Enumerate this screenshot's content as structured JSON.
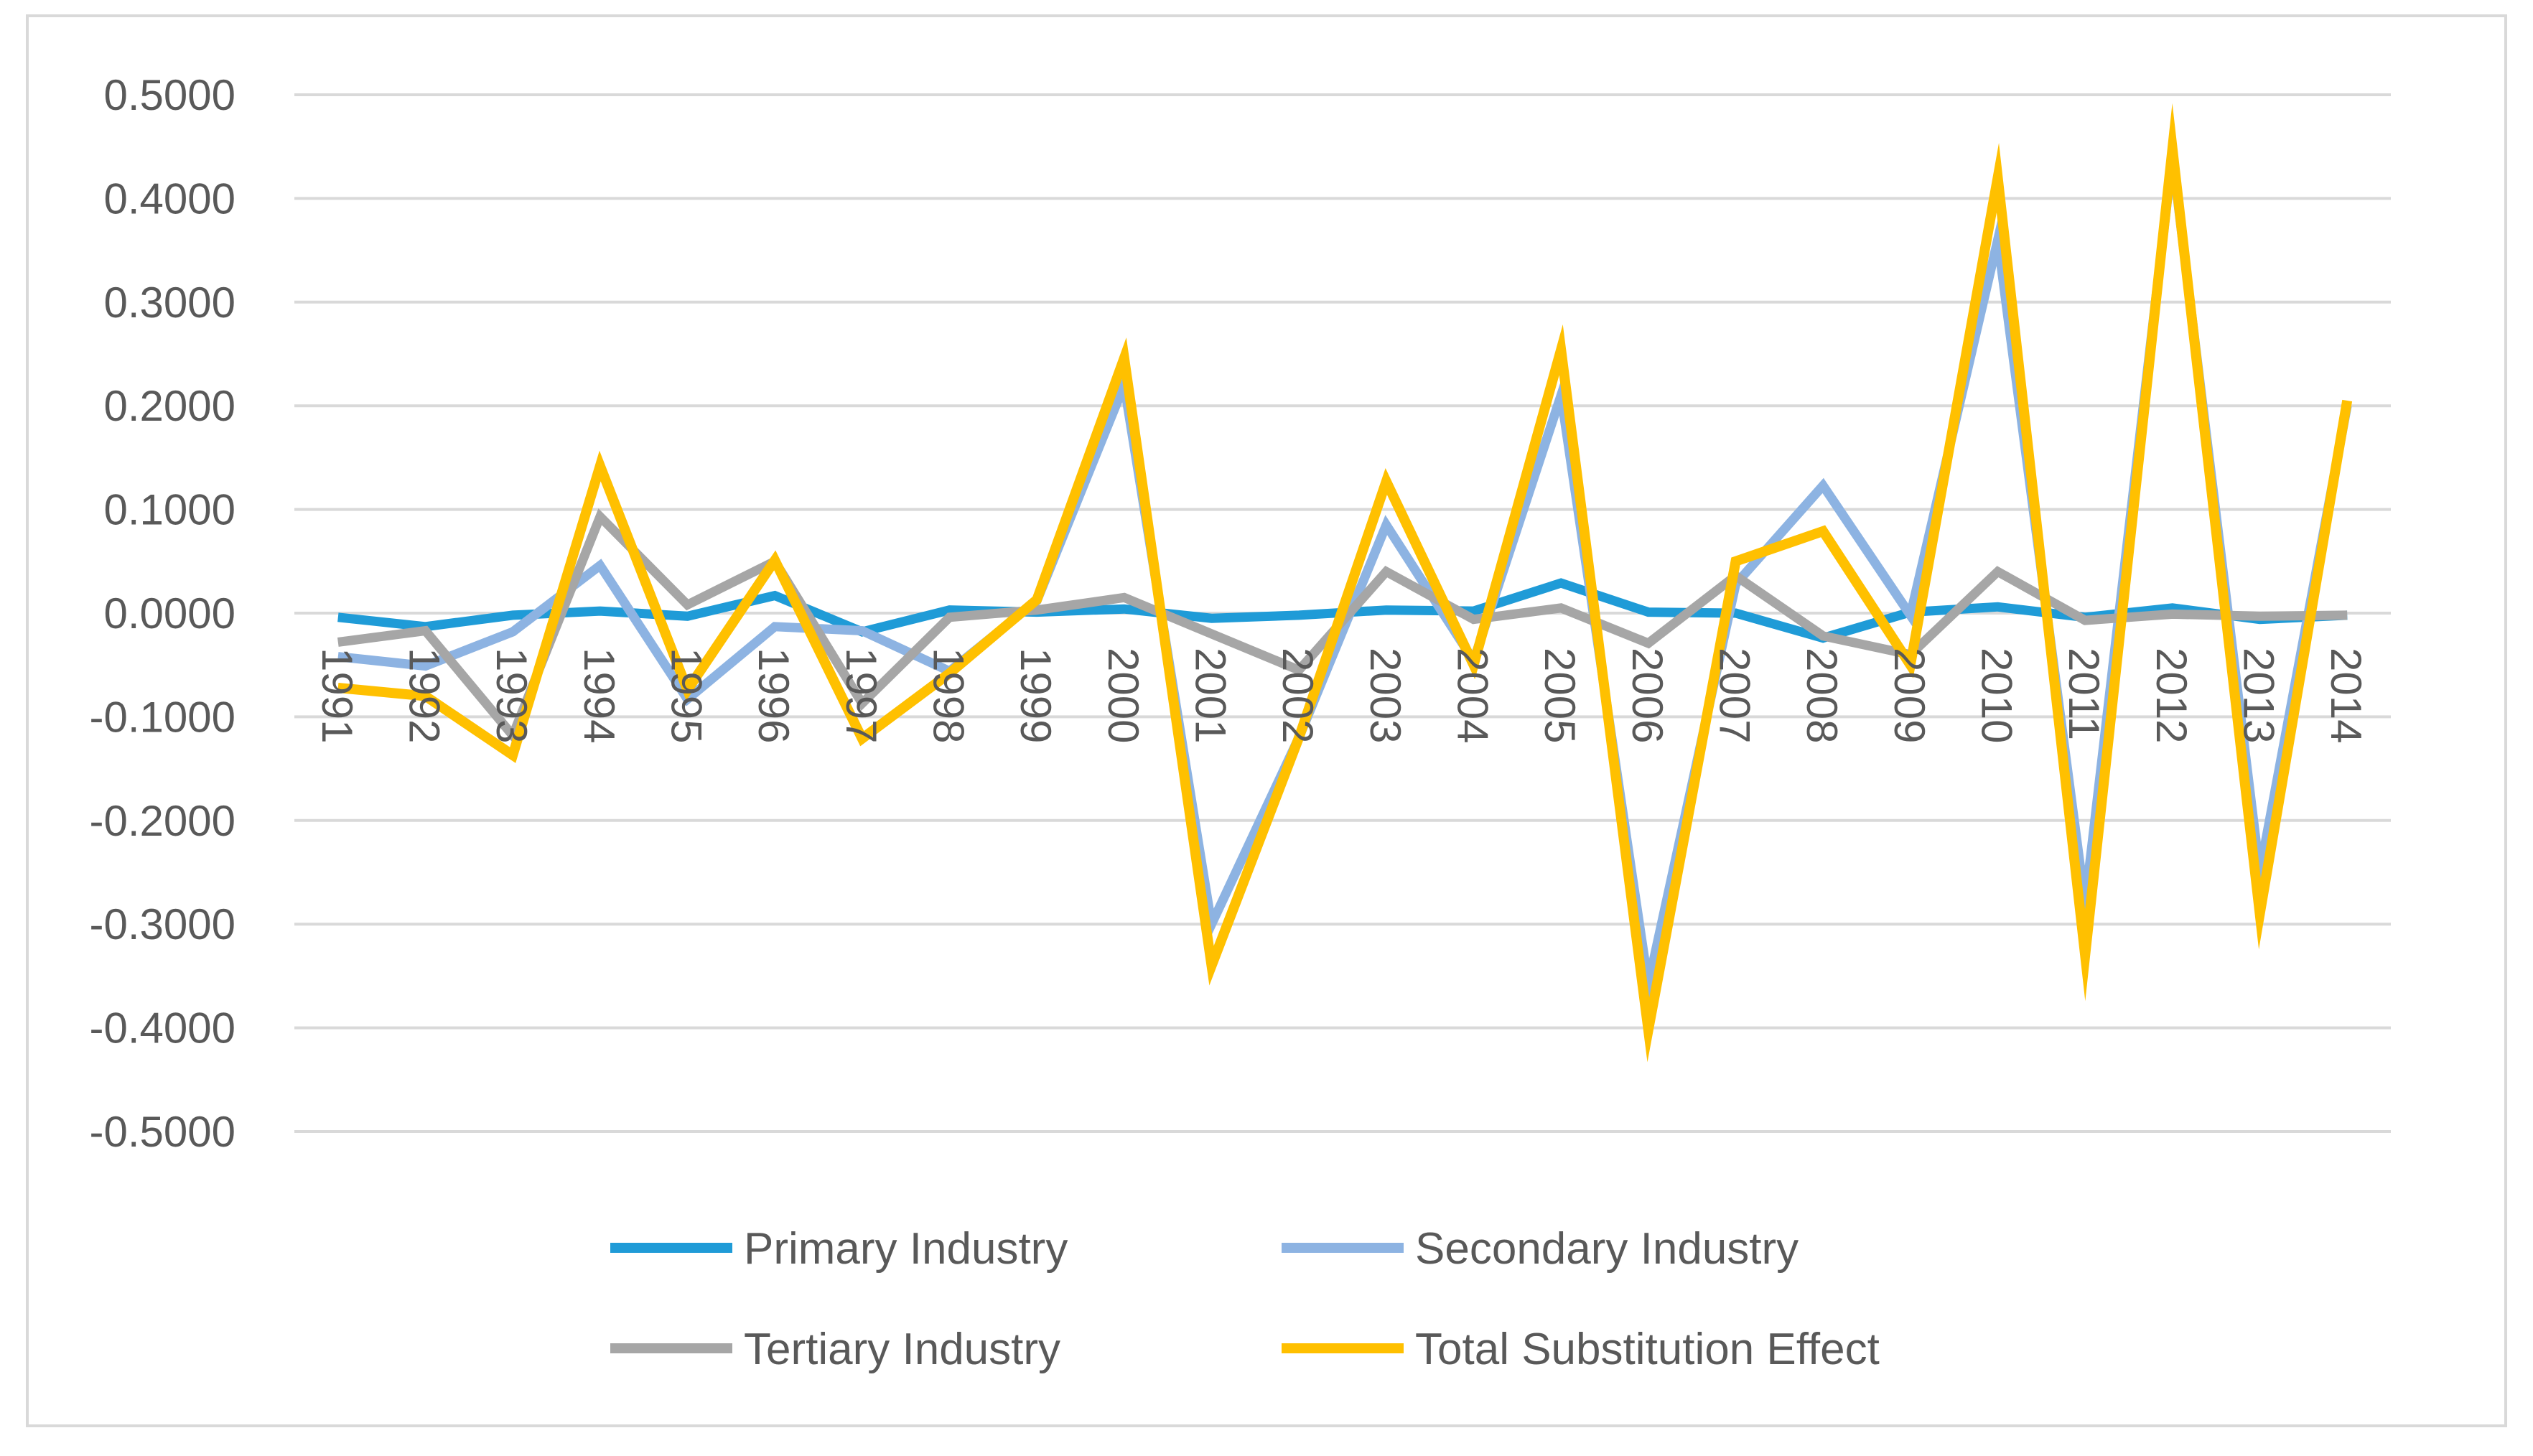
{
  "chart_data": {
    "type": "line",
    "title": "",
    "xlabel": "",
    "ylabel": "",
    "ylim": [
      -0.5,
      0.5
    ],
    "y_ticks": [
      "0.5000",
      "0.4000",
      "0.3000",
      "0.2000",
      "0.1000",
      "0.0000",
      "-0.1000",
      "-0.2000",
      "-0.3000",
      "-0.4000",
      "-0.5000"
    ],
    "y_tick_values": [
      0.5,
      0.4,
      0.3,
      0.2,
      0.1,
      0.0,
      -0.1,
      -0.2,
      -0.3,
      -0.4,
      -0.5
    ],
    "grid": true,
    "legend_position": "bottom",
    "categories": [
      "1991",
      "1992",
      "1993",
      "1994",
      "1995",
      "1996",
      "1997",
      "1998",
      "1999",
      "2000",
      "2001",
      "2002",
      "2003",
      "2004",
      "2005",
      "2006",
      "2007",
      "2008",
      "2009",
      "2010",
      "2011",
      "2012",
      "2013",
      "2014"
    ],
    "series": [
      {
        "name": "Primary Industry",
        "color": "#1f9bd7",
        "values": [
          -0.004,
          -0.013,
          -0.002,
          0.002,
          -0.003,
          0.017,
          -0.018,
          0.003,
          0.001,
          0.004,
          -0.005,
          -0.002,
          0.003,
          0.002,
          0.029,
          0.001,
          0.0,
          -0.024,
          0.001,
          0.006,
          -0.004,
          0.005,
          -0.006,
          -0.002
        ]
      },
      {
        "name": "Secondary Industry",
        "color": "#8db3e2",
        "values": [
          -0.042,
          -0.051,
          -0.018,
          0.046,
          -0.083,
          -0.013,
          -0.017,
          -0.056,
          0.012,
          0.22,
          -0.3,
          -0.12,
          0.085,
          -0.046,
          0.21,
          -0.358,
          0.028,
          0.123,
          -0.002,
          0.36,
          -0.28,
          0.44,
          -0.25,
          0.2
        ]
      },
      {
        "name": "Tertiary Industry",
        "color": "#a6a6a6",
        "values": [
          -0.028,
          -0.017,
          -0.118,
          0.093,
          0.008,
          0.05,
          -0.087,
          -0.004,
          0.003,
          0.015,
          -0.02,
          -0.055,
          0.04,
          -0.006,
          0.005,
          -0.029,
          0.036,
          -0.022,
          -0.04,
          0.04,
          -0.007,
          -0.001,
          -0.003,
          -0.002
        ]
      },
      {
        "name": "Total Substitution Effect",
        "color": "#ffc000",
        "values": [
          -0.072,
          -0.08,
          -0.137,
          0.142,
          -0.074,
          0.051,
          -0.121,
          -0.058,
          0.013,
          0.246,
          -0.34,
          -0.12,
          0.127,
          -0.05,
          0.254,
          -0.402,
          0.05,
          0.079,
          -0.05,
          0.42,
          -0.33,
          0.448,
          -0.29,
          0.205
        ]
      }
    ]
  }
}
